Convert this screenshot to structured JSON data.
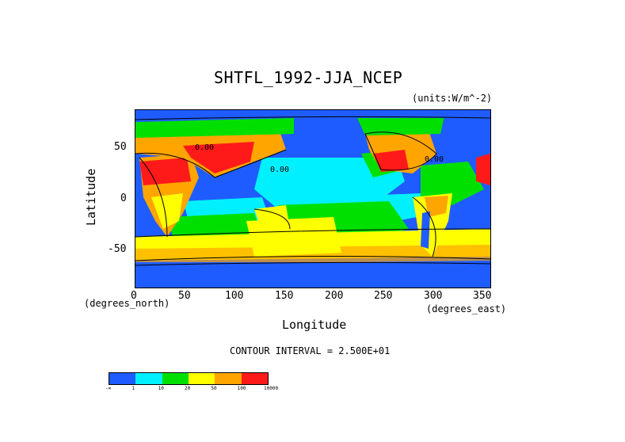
{
  "title": "SHTFL_1992-JJA_NCEP",
  "units": "(units:W/m^-2)",
  "x_axis": {
    "label": "Longitude",
    "unit": "(degrees_east)",
    "ticks": [
      "0",
      "50",
      "100",
      "150",
      "200",
      "250",
      "300",
      "350"
    ]
  },
  "y_axis": {
    "label": "Latitude",
    "unit": "(degrees_north)",
    "ticks": [
      "50",
      "0",
      "-50"
    ]
  },
  "contour_interval": "CONTOUR INTERVAL = 2.500E+01",
  "map_labels": [
    "0.00",
    "0.00",
    "0.00"
  ],
  "legend": {
    "colors": [
      "#1f5cff",
      "#00f0ff",
      "#00e000",
      "#ffff00",
      "#ffa500",
      "#ff1a1a"
    ],
    "labels": [
      "-∞",
      "1",
      "10",
      "20",
      "50",
      "100",
      "10000"
    ]
  }
}
